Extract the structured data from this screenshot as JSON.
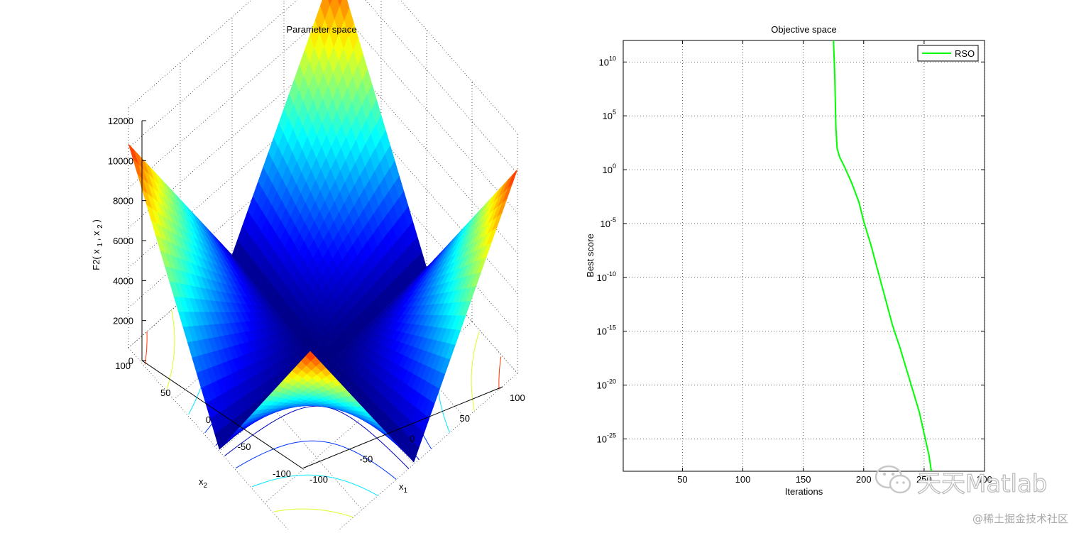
{
  "chart_data": [
    {
      "type": "surface",
      "title": "Parameter space",
      "zlabel": "F2( x_1 , x_2 )",
      "zlabel_parts": [
        "F2(",
        "x",
        "1",
        ",",
        "x",
        "2",
        ")"
      ],
      "xlabel_parts": [
        "x",
        "1"
      ],
      "ylabel_parts": [
        "x",
        "2"
      ],
      "x_range": [
        -100,
        100
      ],
      "y_range": [
        -100,
        100
      ],
      "z_range": [
        0,
        12000
      ],
      "z_ticks": [
        "0",
        "2000",
        "4000",
        "6000",
        "8000",
        "10000",
        "12000"
      ],
      "x1_ticks": [
        "-100",
        "-50",
        "0",
        "50",
        "100"
      ],
      "x2_ticks": [
        "-100",
        "-50",
        "0",
        "50",
        "100"
      ],
      "function": "|x1| + |x2| + |x1|*|x2|",
      "corner_value": 10200,
      "colormap": "jet",
      "grid": true,
      "contours": true
    },
    {
      "type": "line",
      "title": "Objective space",
      "xlabel": "Iterations",
      "ylabel": "Best score",
      "yscale": "log",
      "xlim": [
        1,
        300
      ],
      "ylim_exponents": [
        -28,
        12
      ],
      "x_ticks": [
        "50",
        "100",
        "150",
        "200",
        "250",
        "300"
      ],
      "y_tick_base": "10",
      "y_tick_exponents": [
        "10",
        "5",
        "0",
        "-5",
        "-10",
        "-15",
        "-20",
        "-25"
      ],
      "grid": true,
      "legend_position": "top-right",
      "series": [
        {
          "name": "RSO",
          "color": "#00ff00",
          "x": [
            175,
            176,
            177,
            178,
            180,
            184,
            190,
            196,
            200,
            206,
            212,
            218,
            224,
            230,
            234,
            238,
            242,
            246,
            249,
            252,
            254,
            256
          ],
          "log10_y": [
            12,
            9,
            4,
            2,
            1.2,
            0.3,
            -1.2,
            -3,
            -4.8,
            -7,
            -9.5,
            -12,
            -14.5,
            -16.5,
            -18,
            -19.5,
            -21,
            -22.5,
            -24,
            -25.5,
            -26.5,
            -28
          ]
        }
      ]
    }
  ],
  "watermarks": {
    "wechat_text": "天天Matlab",
    "juejin_text": "@稀土掘金技术社区"
  }
}
